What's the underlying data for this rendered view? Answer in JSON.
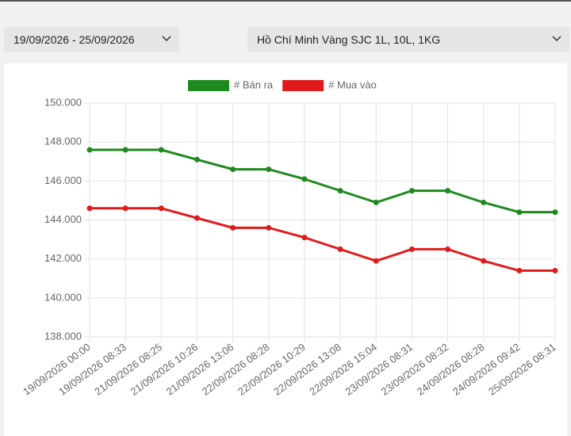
{
  "filters": {
    "date_range": "19/09/2026 - 25/09/2026",
    "location": "Hồ Chí Minh Vàng SJC 1L, 10L, 1KG"
  },
  "chart_data": {
    "type": "line",
    "categories": [
      "19/09/2026 00:00",
      "19/09/2026 08:33",
      "21/09/2026 08:25",
      "21/09/2026 10:26",
      "21/09/2026 13:06",
      "22/09/2026 08:28",
      "22/09/2026 10:29",
      "22/09/2026 13:08",
      "22/09/2026 15:04",
      "23/09/2026 08:31",
      "23/09/2026 08:32",
      "24/09/2026 08:28",
      "24/09/2026 09:42",
      "25/09/2026 08:31"
    ],
    "series": [
      {
        "name": "# Bán ra",
        "color": "#1e8a1e",
        "values": [
          147600,
          147600,
          147600,
          147100,
          146600,
          146600,
          146100,
          145500,
          144900,
          145500,
          145500,
          144900,
          144400,
          144400
        ]
      },
      {
        "name": "# Mua vào",
        "color": "#e01b1b",
        "values": [
          144600,
          144600,
          144600,
          144100,
          143600,
          143600,
          143100,
          142500,
          141900,
          142500,
          142500,
          141900,
          141400,
          141400
        ]
      }
    ],
    "ylim": [
      138000,
      150000
    ],
    "yticks": [
      {
        "value": 138000,
        "label": "138.000"
      },
      {
        "value": 140000,
        "label": "140.000"
      },
      {
        "value": 142000,
        "label": "142.000"
      },
      {
        "value": 144000,
        "label": "144.000"
      },
      {
        "value": 146000,
        "label": "146.000"
      },
      {
        "value": 148000,
        "label": "148.000"
      },
      {
        "value": 150000,
        "label": "150.000"
      }
    ],
    "grid": true,
    "legend": "top"
  }
}
